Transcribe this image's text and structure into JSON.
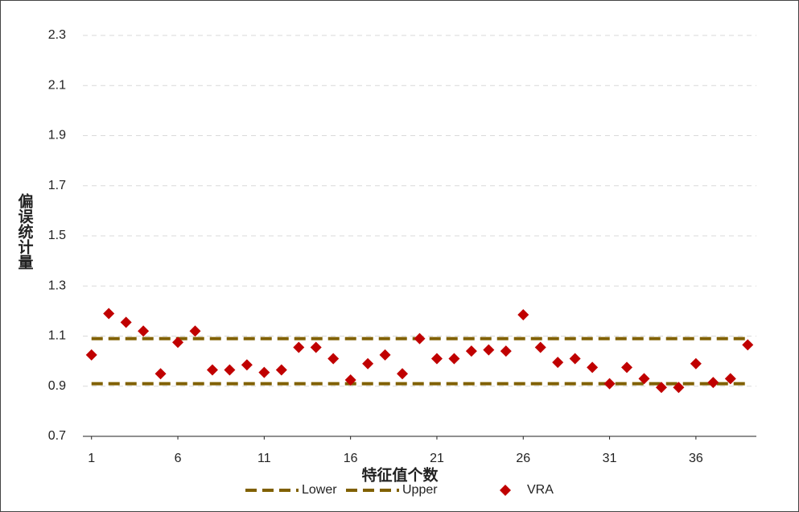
{
  "chart_data": {
    "type": "scatter",
    "x_label": "特征值个数",
    "y_label": "偏误统计量",
    "x": [
      1,
      2,
      3,
      4,
      5,
      6,
      7,
      8,
      9,
      10,
      11,
      12,
      13,
      14,
      15,
      16,
      17,
      18,
      19,
      20,
      21,
      22,
      23,
      24,
      25,
      26,
      27,
      28,
      29,
      30,
      31,
      32,
      33,
      34,
      35,
      36,
      37,
      38,
      39
    ],
    "xlim": [
      0.5,
      39.5
    ],
    "xticks": [
      1,
      6,
      11,
      16,
      21,
      26,
      31,
      36
    ],
    "ylim": [
      0.7,
      2.3
    ],
    "yticks": [
      0.7,
      0.9,
      1.1,
      1.3,
      1.5,
      1.7,
      1.9,
      2.1,
      2.3
    ],
    "grid": true,
    "series": [
      {
        "name": "Lower",
        "kind": "dashed-line",
        "color": "#806000",
        "values": [
          0.91,
          0.91,
          0.91,
          0.91,
          0.91,
          0.91,
          0.91,
          0.91,
          0.91,
          0.91,
          0.91,
          0.91,
          0.91,
          0.91,
          0.91,
          0.91,
          0.91,
          0.91,
          0.91,
          0.91,
          0.91,
          0.91,
          0.91,
          0.91,
          0.91,
          0.91,
          0.91,
          0.91,
          0.91,
          0.91,
          0.91,
          0.91,
          0.91,
          0.91,
          0.91,
          0.91,
          0.91,
          0.91,
          0.91
        ]
      },
      {
        "name": "Upper",
        "kind": "dashed-line",
        "color": "#806000",
        "values": [
          1.09,
          1.09,
          1.09,
          1.09,
          1.09,
          1.09,
          1.09,
          1.09,
          1.09,
          1.09,
          1.09,
          1.09,
          1.09,
          1.09,
          1.09,
          1.09,
          1.09,
          1.09,
          1.09,
          1.09,
          1.09,
          1.09,
          1.09,
          1.09,
          1.09,
          1.09,
          1.09,
          1.09,
          1.09,
          1.09,
          1.09,
          1.09,
          1.09,
          1.09,
          1.09,
          1.09,
          1.09,
          1.09,
          1.09
        ]
      },
      {
        "name": "VRA",
        "kind": "marker",
        "color": "#c00000",
        "values": [
          1.025,
          1.19,
          1.155,
          1.12,
          0.95,
          1.075,
          1.12,
          0.965,
          0.965,
          0.985,
          0.955,
          0.965,
          1.055,
          1.055,
          1.01,
          0.925,
          0.99,
          1.025,
          0.95,
          1.09,
          1.01,
          1.01,
          1.04,
          1.045,
          1.04,
          1.185,
          1.055,
          0.995,
          1.01,
          0.975,
          0.91,
          0.975,
          0.93,
          0.895,
          0.895,
          0.99,
          0.915,
          0.93,
          1.065
        ]
      }
    ]
  }
}
